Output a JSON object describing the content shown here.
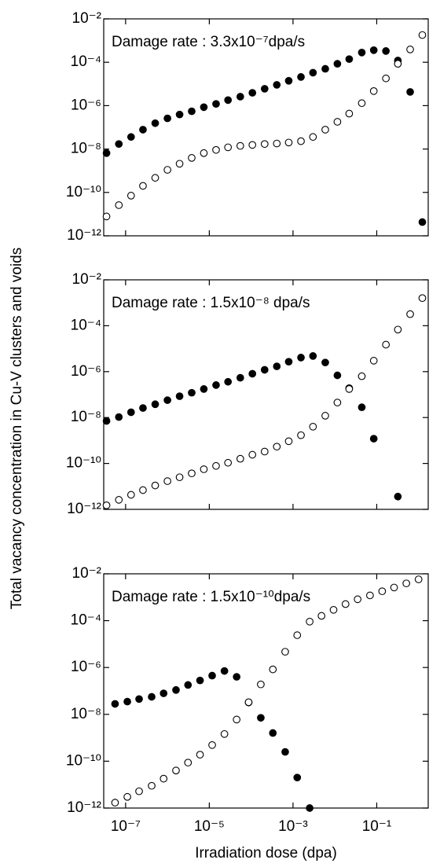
{
  "chart_data": [
    {
      "type": "scatter",
      "title": "Damage rate : 3.3x10⁻⁷dpa/s",
      "log_x": true,
      "log_y": true,
      "xlim": [
        3e-08,
        1.7
      ],
      "ylim": [
        1e-12,
        0.01
      ],
      "xticks": [
        1e-07,
        1e-05,
        0.001,
        0.1
      ],
      "yticks": [
        {
          "value": 0.01,
          "label": "10⁻²"
        },
        {
          "value": 0.0001,
          "label": "10⁻⁴"
        },
        {
          "value": 1e-06,
          "label": "10⁻⁶"
        },
        {
          "value": 1e-08,
          "label": "10⁻⁸"
        },
        {
          "value": 1e-10,
          "label": "10⁻¹⁰"
        },
        {
          "value": 1e-12,
          "label": "10⁻¹²"
        }
      ],
      "x": [
        3.5e-08,
        6.9e-08,
        1.35e-07,
        2.6e-07,
        5.1e-07,
        1e-06,
        1.95e-06,
        3.8e-06,
        7.4e-06,
        1.45e-05,
        2.8e-05,
        5.5e-05,
        0.000107,
        0.00021,
        0.00041,
        0.00079,
        0.00155,
        0.003,
        0.0059,
        0.0115,
        0.022,
        0.044,
        0.085,
        0.166,
        0.32,
        0.63,
        1.23
      ],
      "series": [
        {
          "color": "#000000",
          "fill": "#000000",
          "values": [
            6.5e-09,
            1.7e-08,
            3.6e-08,
            7.8e-08,
            1.55e-07,
            2.6e-07,
            3.9e-07,
            5.5e-07,
            8.5e-07,
            1.2e-06,
            1.8e-06,
            2.6e-06,
            3.9e-06,
            6e-06,
            9.1e-06,
            1.4e-05,
            2.1e-05,
            3.3e-05,
            5e-05,
            8.5e-05,
            0.00014,
            0.00028,
            0.00036,
            0.00033,
            0.00012,
            4.3e-06,
            4.3e-12
          ]
        },
        {
          "color": "#000000",
          "fill": "#ffffff",
          "values": [
            7.8e-12,
            2.6e-11,
            7.1e-11,
            2e-10,
            4.7e-10,
            1.1e-09,
            2.1e-09,
            3.9e-09,
            6.5e-09,
            9.1e-09,
            1.2e-08,
            1.4e-08,
            1.55e-08,
            1.7e-08,
            1.8e-08,
            2e-08,
            2.3e-08,
            3.6e-08,
            7.8e-08,
            1.8e-07,
            4.3e-07,
            1.3e-06,
            4.7e-06,
            1.8e-05,
            8.5e-05,
            0.00039,
            0.0018
          ]
        }
      ]
    },
    {
      "type": "scatter",
      "title": "Damage rate : 1.5x10⁻⁸ dpa/s",
      "ylabel": "Total vacancy concentration in Cu-V clusters and voids",
      "log_x": true,
      "log_y": true,
      "xlim": [
        3e-08,
        1.7
      ],
      "ylim": [
        1e-12,
        0.01
      ],
      "xticks": [
        1e-07,
        1e-05,
        0.001,
        0.1
      ],
      "yticks": [
        {
          "value": 0.01,
          "label": "10⁻²"
        },
        {
          "value": 0.0001,
          "label": "10⁻⁴"
        },
        {
          "value": 1e-06,
          "label": "10⁻⁶"
        },
        {
          "value": 1e-08,
          "label": "10⁻⁸"
        },
        {
          "value": 1e-10,
          "label": "10⁻¹⁰"
        },
        {
          "value": 1e-12,
          "label": "10⁻¹²"
        }
      ],
      "x": [
        3.5e-08,
        6.9e-08,
        1.35e-07,
        2.6e-07,
        5.1e-07,
        1e-06,
        1.95e-06,
        3.8e-06,
        7.4e-06,
        1.45e-05,
        2.8e-05,
        5.5e-05,
        0.000107,
        0.00021,
        0.00041,
        0.00079,
        0.00155,
        0.003,
        0.0059,
        0.0115,
        0.022,
        0.044,
        0.085,
        0.166,
        0.32,
        0.63,
        1.23
      ],
      "series": [
        {
          "color": "#000000",
          "fill": "#000000",
          "values": [
            7.1e-09,
            1.05e-08,
            1.7e-08,
            2.6e-08,
            3.8e-08,
            5.7e-08,
            8.5e-08,
            1.2e-07,
            1.75e-07,
            2.6e-07,
            3.6e-07,
            5.4e-07,
            8.1e-07,
            1.2e-06,
            1.7e-06,
            2.7e-06,
            4.1e-06,
            4.8e-06,
            2.5e-06,
            6.9e-07,
            1.9e-07,
            2.8e-08,
            1.2e-09,
            null,
            3.6e-12,
            null,
            null
          ]
        },
        {
          "color": "#000000",
          "fill": "#ffffff",
          "values": [
            1.5e-12,
            2.6e-12,
            4.3e-12,
            6.9e-12,
            1.1e-11,
            1.7e-11,
            2.5e-11,
            3.7e-11,
            5.6e-11,
            7.8e-11,
            1.07e-10,
            1.6e-10,
            2.4e-10,
            3.3e-10,
            5.4e-10,
            9.3e-10,
            1.7e-09,
            4e-09,
            1.2e-08,
            4.5e-08,
            1.75e-07,
            6.3e-07,
            3e-06,
            1.5e-05,
            6.8e-05,
            0.00032,
            0.0016
          ]
        }
      ]
    },
    {
      "type": "scatter",
      "title": "Damage rate : 1.5x10⁻¹⁰dpa/s",
      "xlabel": "Irradiation dose (dpa)",
      "log_x": true,
      "log_y": true,
      "xlim": [
        3e-08,
        1.7
      ],
      "ylim": [
        1e-12,
        0.01
      ],
      "xticks": [
        {
          "value": 1e-07,
          "label": "10⁻⁷"
        },
        {
          "value": 1e-05,
          "label": "10⁻⁵"
        },
        {
          "value": 0.001,
          "label": "10⁻³"
        },
        {
          "value": 0.1,
          "label": "10⁻¹"
        }
      ],
      "yticks": [
        {
          "value": 0.01,
          "label": "10⁻²"
        },
        {
          "value": 0.0001,
          "label": "10⁻⁴"
        },
        {
          "value": 1e-06,
          "label": "10⁻⁶"
        },
        {
          "value": 1e-08,
          "label": "10⁻⁸"
        },
        {
          "value": 1e-10,
          "label": "10⁻¹⁰"
        },
        {
          "value": 1e-12,
          "label": "10⁻¹²"
        }
      ],
      "x": [
        5.6e-08,
        1.1e-07,
        2.1e-07,
        4.2e-07,
        8.1e-07,
        1.6e-06,
        3.1e-06,
        6e-06,
        1.17e-05,
        2.3e-05,
        4.5e-05,
        8.7e-05,
        0.00017,
        0.00033,
        0.00065,
        0.00126,
        0.0025,
        0.0048,
        0.0093,
        0.018,
        0.035,
        0.069,
        0.135,
        0.26,
        0.51,
        1
      ],
      "series": [
        {
          "color": "#000000",
          "fill": "#000000",
          "values": [
            2.8e-08,
            3.5e-08,
            4.5e-08,
            5.6e-08,
            7.9e-08,
            1.1e-07,
            1.8e-07,
            2.8e-07,
            4.5e-07,
            7.1e-07,
            4e-07,
            3.2e-08,
            7.1e-09,
            1.6e-09,
            2.5e-10,
            2e-11,
            1e-12,
            null,
            null,
            null,
            null,
            null,
            null,
            null,
            null,
            null
          ]
        },
        {
          "color": "#000000",
          "fill": "#ffffff",
          "values": [
            1.7e-12,
            3e-12,
            5.2e-12,
            8.9e-12,
            1.8e-11,
            4e-11,
            8.7e-11,
            1.9e-10,
            4.9e-10,
            1.45e-09,
            6e-09,
            3.3e-08,
            1.9e-07,
            8.3e-07,
            4.7e-06,
            2.4e-05,
            9.1e-05,
            0.00016,
            0.00029,
            0.00051,
            0.00082,
            0.0012,
            0.0018,
            0.0026,
            0.0039,
            0.0058
          ]
        }
      ]
    }
  ]
}
